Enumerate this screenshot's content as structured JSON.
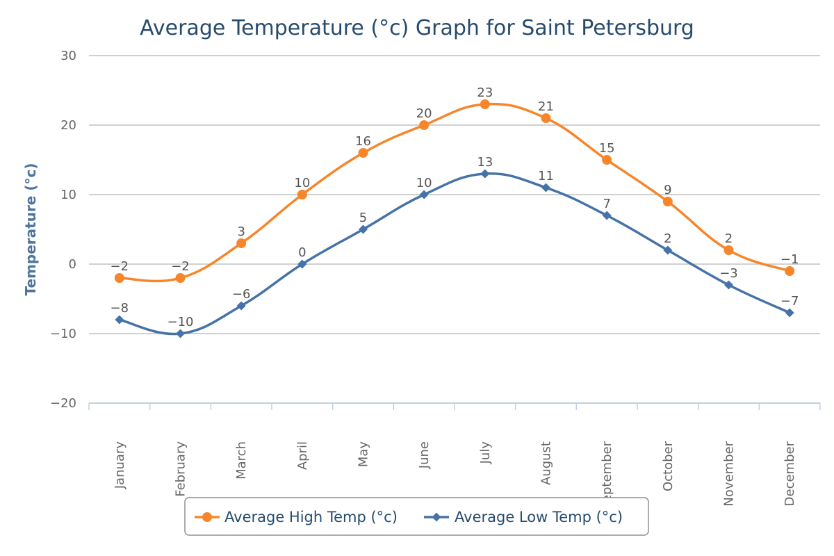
{
  "chart_data": {
    "type": "line",
    "title": "Average Temperature (°c) Graph for Saint Petersburg",
    "ylabel": "Temperature (°c)",
    "xlabel": "",
    "ylim": [
      -20,
      30
    ],
    "yticks": [
      -20,
      -10,
      0,
      10,
      20,
      30
    ],
    "categories": [
      "January",
      "February",
      "March",
      "April",
      "May",
      "June",
      "July",
      "August",
      "September",
      "October",
      "November",
      "December"
    ],
    "grid": true,
    "legend_position": "bottom-center",
    "series": [
      {
        "name": "Average High Temp (°c)",
        "values": [
          -2,
          -2,
          3,
          10,
          16,
          20,
          23,
          21,
          15,
          9,
          2,
          -1
        ],
        "color": "#f7862a",
        "marker": "circle"
      },
      {
        "name": "Average Low Temp (°c)",
        "values": [
          -8,
          -10,
          -6,
          0,
          5,
          10,
          13,
          11,
          7,
          2,
          -3,
          -7
        ],
        "color": "#4572a7",
        "marker": "diamond"
      }
    ]
  }
}
